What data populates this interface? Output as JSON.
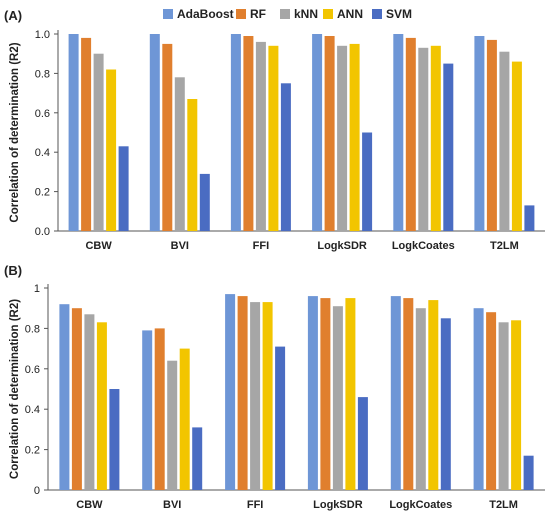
{
  "legend": [
    {
      "name": "AdaBoost",
      "color": "#6E96D6"
    },
    {
      "name": "RF",
      "color": "#E07F2E"
    },
    {
      "name": "kNN",
      "color": "#A6A6A6"
    },
    {
      "name": "ANN",
      "color": "#F2C500"
    },
    {
      "name": "SVM",
      "color": "#4A6CC2"
    }
  ],
  "chart_data": [
    {
      "type": "bar",
      "panel_label": "(A)",
      "categories": [
        "CBW",
        "BVI",
        "FFI",
        "LogkSDR",
        "LogkCoates",
        "T2LM"
      ],
      "ylabel": "Correlation of determination (R2)",
      "ylim": [
        0,
        1.0
      ],
      "yticks": [
        "0.0",
        "0.2",
        "0.4",
        "0.6",
        "0.8",
        "1.0"
      ],
      "legend_position": "top",
      "series": [
        {
          "name": "AdaBoost",
          "values": [
            1.0,
            1.0,
            1.0,
            1.0,
            1.0,
            0.99
          ]
        },
        {
          "name": "RF",
          "values": [
            0.98,
            0.95,
            0.99,
            0.99,
            0.98,
            0.97
          ]
        },
        {
          "name": "kNN",
          "values": [
            0.9,
            0.78,
            0.96,
            0.94,
            0.93,
            0.91
          ]
        },
        {
          "name": "ANN",
          "values": [
            0.82,
            0.67,
            0.94,
            0.95,
            0.94,
            0.86
          ]
        },
        {
          "name": "SVM",
          "values": [
            0.43,
            0.29,
            0.75,
            0.5,
            0.85,
            0.13
          ]
        }
      ]
    },
    {
      "type": "bar",
      "panel_label": "(B)",
      "categories": [
        "CBW",
        "BVI",
        "FFI",
        "LogkSDR",
        "LogkCoates",
        "T2LM"
      ],
      "ylabel": "Correlation of determination (R2)",
      "ylim": [
        0,
        1.0
      ],
      "yticks": [
        "0",
        "0.2",
        "0.4",
        "0.6",
        "0.8",
        "1"
      ],
      "series": [
        {
          "name": "AdaBoost",
          "values": [
            0.92,
            0.79,
            0.97,
            0.96,
            0.96,
            0.9
          ]
        },
        {
          "name": "RF",
          "values": [
            0.9,
            0.8,
            0.96,
            0.95,
            0.95,
            0.88
          ]
        },
        {
          "name": "kNN",
          "values": [
            0.87,
            0.64,
            0.93,
            0.91,
            0.9,
            0.83
          ]
        },
        {
          "name": "ANN",
          "values": [
            0.83,
            0.7,
            0.93,
            0.95,
            0.94,
            0.84
          ]
        },
        {
          "name": "SVM",
          "values": [
            0.5,
            0.31,
            0.71,
            0.46,
            0.85,
            0.17
          ]
        }
      ]
    }
  ]
}
